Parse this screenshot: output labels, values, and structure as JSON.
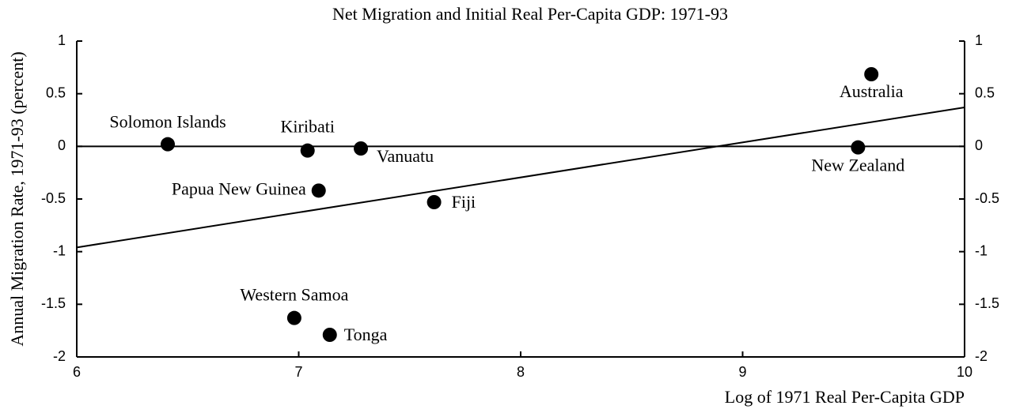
{
  "chart_data": {
    "type": "scatter",
    "title": "Net Migration and Initial Real Per-Capita GDP: 1971-93",
    "x_label": "Log of 1971 Real Per-Capita GDP",
    "y_label": "Annual Migration Rate, 1971-93 (percent)",
    "point_labels": [
      "Solomon Islands",
      "Kiribati",
      "Vanuatu",
      "Papua New Guinea",
      "Fiji",
      "Western Samoa",
      "Tonga",
      "Australia",
      "New Zealand"
    ],
    "x": [
      6.41,
      7.04,
      7.28,
      7.09,
      7.61,
      6.98,
      7.14,
      9.58,
      9.52
    ],
    "values": [
      0.02,
      -0.04,
      -0.02,
      -0.42,
      -0.53,
      -1.63,
      -1.79,
      0.685,
      -0.01
    ],
    "color": "#000000",
    "fit_line": {
      "x": [
        6,
        10
      ],
      "y": [
        -0.96,
        0.37
      ]
    },
    "reference_line": 0,
    "xlim": [
      6,
      10
    ],
    "xticks": [
      6,
      7,
      8,
      9,
      10
    ],
    "ylim": [
      -2,
      1
    ],
    "yticks": [
      -2,
      -1.5,
      -1,
      -0.5,
      0,
      0.5,
      1
    ],
    "y2lim": [
      -2,
      1
    ],
    "y2ticks": [
      -2,
      -1.5,
      -1,
      -0.5,
      0,
      0.5,
      1
    ]
  }
}
